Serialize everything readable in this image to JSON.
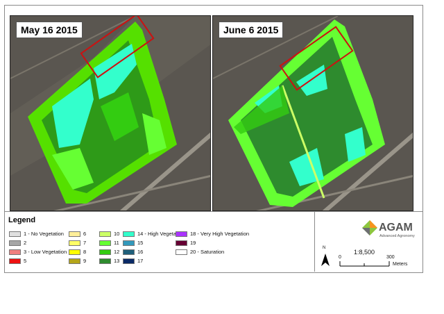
{
  "maps": [
    {
      "date_label": "May 16 2015"
    },
    {
      "date_label": "June 6 2015"
    }
  ],
  "legend": {
    "title": "Legend",
    "items": [
      {
        "label": "1 - No Vegetation",
        "color": "#e0e0e0"
      },
      {
        "label": "2",
        "color": "#a6a6a6"
      },
      {
        "label": "3 - Low Vegetation",
        "color": "#f08080"
      },
      {
        "label": "5",
        "color": "#ee1111"
      },
      {
        "label": "6",
        "color": "#ffef99"
      },
      {
        "label": "7",
        "color": "#ffff66"
      },
      {
        "label": "8",
        "color": "#ffff00"
      },
      {
        "label": "9",
        "color": "#b5a61a"
      },
      {
        "label": "10",
        "color": "#ccff66"
      },
      {
        "label": "11",
        "color": "#66ff33"
      },
      {
        "label": "12",
        "color": "#33cc11"
      },
      {
        "label": "13",
        "color": "#2e8b2e"
      },
      {
        "label": "14 - High Vegetation",
        "color": "#33ffcc"
      },
      {
        "label": "15",
        "color": "#3399bb"
      },
      {
        "label": "16",
        "color": "#1f5f7a"
      },
      {
        "label": "17",
        "color": "#0a2a66"
      },
      {
        "label": "18 - Very High Vegetation",
        "color": "#aa33ff"
      },
      {
        "label": "19",
        "color": "#660033"
      },
      {
        "label": "20 - Saturation",
        "color": "#ffffff"
      }
    ]
  },
  "logo": {
    "name": "AGAM",
    "tagline": "Advanced Agronomy"
  },
  "scale": {
    "north": "N",
    "ratio": "1:8,500",
    "start": "0",
    "end": "300",
    "unit": "Meters"
  }
}
